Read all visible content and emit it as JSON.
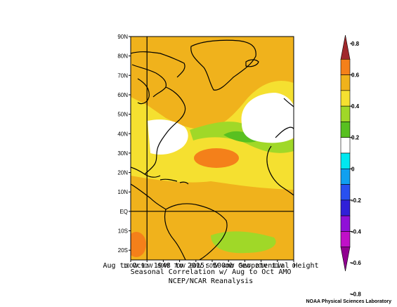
{
  "map": {
    "lat_labels": [
      "90N",
      "80N",
      "70N",
      "60N",
      "50N",
      "40N",
      "30N",
      "20N",
      "10N",
      "EQ",
      "10S",
      "20S"
    ],
    "lon_labels": [
      "100W",
      "90W",
      "80W",
      "70W",
      "60W",
      "50W",
      "40W",
      "30W",
      "20W",
      "10W",
      "0"
    ],
    "lat_range": [
      -25,
      90
    ],
    "lon_range": [
      -100,
      0
    ],
    "reference_lines": [
      "90W",
      "EQ"
    ]
  },
  "colorbar": {
    "labels": [
      "0.8",
      "0.6",
      "0.4",
      "0.2",
      "0",
      "-0.2",
      "-0.4",
      "-0.6",
      "-0.8"
    ],
    "colors": [
      "#a0282c",
      "#f4801a",
      "#f0b21c",
      "#f5e030",
      "#a0d828",
      "#58c020",
      "#ffffff",
      "#00e8f0",
      "#10a0f0",
      "#2850f0",
      "#3020d8",
      "#9010d8",
      "#c010c8",
      "#900090"
    ]
  },
  "caption": {
    "line1": "Aug to Oct: 1948 to 2015: 500mb Geopotential Height",
    "line2": "Seasonal Correlation w/ Aug to Oct AMO",
    "line3": "NCEP/NCAR Reanalysis"
  },
  "credit": "NOAA Physical Sciences Laboratory"
}
